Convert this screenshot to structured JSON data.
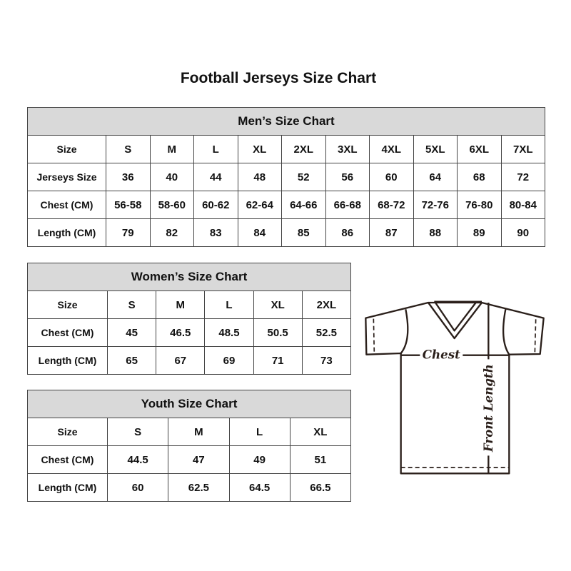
{
  "title": "Football Jerseys Size Chart",
  "men": {
    "caption": "Men’s Size Chart",
    "rows": [
      {
        "label": "Size",
        "values": [
          "S",
          "M",
          "L",
          "XL",
          "2XL",
          "3XL",
          "4XL",
          "5XL",
          "6XL",
          "7XL"
        ]
      },
      {
        "label": "Jerseys Size",
        "values": [
          "36",
          "40",
          "44",
          "48",
          "52",
          "56",
          "60",
          "64",
          "68",
          "72"
        ]
      },
      {
        "label": "Chest (CM)",
        "values": [
          "56-58",
          "58-60",
          "60-62",
          "62-64",
          "64-66",
          "66-68",
          "68-72",
          "72-76",
          "76-80",
          "80-84"
        ]
      },
      {
        "label": "Length (CM)",
        "values": [
          "79",
          "82",
          "83",
          "84",
          "85",
          "86",
          "87",
          "88",
          "89",
          "90"
        ]
      }
    ]
  },
  "women": {
    "caption": "Women’s Size Chart",
    "rows": [
      {
        "label": "Size",
        "values": [
          "S",
          "M",
          "L",
          "XL",
          "2XL"
        ]
      },
      {
        "label": "Chest (CM)",
        "values": [
          "45",
          "46.5",
          "48.5",
          "50.5",
          "52.5"
        ]
      },
      {
        "label": "Length (CM)",
        "values": [
          "65",
          "67",
          "69",
          "71",
          "73"
        ]
      }
    ]
  },
  "youth": {
    "caption": "Youth Size Chart",
    "rows": [
      {
        "label": "Size",
        "values": [
          "S",
          "M",
          "L",
          "XL"
        ]
      },
      {
        "label": "Chest (CM)",
        "values": [
          "44.5",
          "47",
          "49",
          "51"
        ]
      },
      {
        "label": "Length (CM)",
        "values": [
          "60",
          "62.5",
          "64.5",
          "66.5"
        ]
      }
    ]
  },
  "diagram": {
    "chest_label": "Chest",
    "length_label": "Front Length"
  },
  "colors": {
    "header_bg": "#d9d9d9",
    "border": "#444444",
    "line": "#2a1f1a"
  }
}
